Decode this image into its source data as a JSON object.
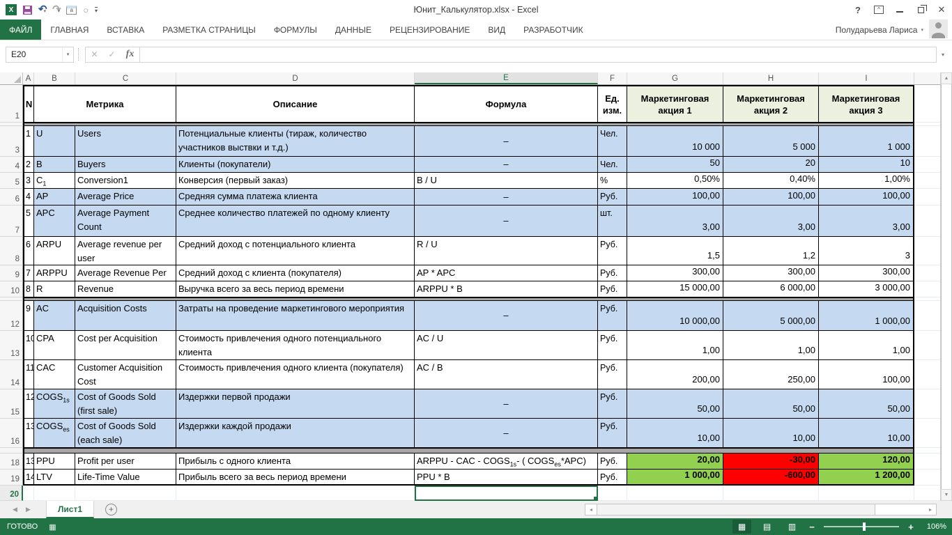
{
  "window": {
    "title": "Юнит_Калькулятор.xlsx - Excel",
    "user": "Полударьева Лариса"
  },
  "ribbon": {
    "tabs": [
      {
        "label": "ФАЙЛ",
        "active": true
      },
      {
        "label": "ГЛАВНАЯ"
      },
      {
        "label": "ВСТАВКА"
      },
      {
        "label": "РАЗМЕТКА СТРАНИЦЫ"
      },
      {
        "label": "ФОРМУЛЫ"
      },
      {
        "label": "ДАННЫЕ"
      },
      {
        "label": "РЕЦЕНЗИРОВАНИЕ"
      },
      {
        "label": "ВИД"
      },
      {
        "label": "РАЗРАБОТЧИК"
      }
    ]
  },
  "formula_bar": {
    "name_box": "E20",
    "formula": ""
  },
  "sheet": {
    "columns": [
      "A",
      "B",
      "C",
      "D",
      "E",
      "F",
      "G",
      "H",
      "I"
    ],
    "selected_column": "E",
    "selected_row": 20,
    "selected_cell": "E20",
    "tab": "Лист1",
    "header_row": {
      "n": "N",
      "metric": "Метрика",
      "desc": "Описание",
      "formula": "Формула",
      "unit": "Ед. изм.",
      "c1": "Маркетинговая акция 1",
      "c2": "Маркетинговая акция 2",
      "c3": "Маркетинговая акция 3"
    },
    "rows": [
      {
        "row": 1,
        "type": "header"
      },
      {
        "row": 2,
        "hidden": true
      },
      {
        "row": 3,
        "n": "1",
        "code": "U",
        "metric": "Users",
        "desc": "Потенциальные клиенты (тираж, количество участников выствки и т.д.)",
        "formula": "–",
        "unit": "Чел.",
        "values": [
          "10 000",
          "5 000",
          "1 000"
        ],
        "fill": "blue"
      },
      {
        "row": 4,
        "n": "2",
        "code": "B",
        "metric": "Buyers",
        "desc": "Клиенты (покупатели)",
        "formula": "–",
        "unit": "Чел.",
        "values": [
          "50",
          "20",
          "10"
        ],
        "fill": "blue"
      },
      {
        "row": 5,
        "n": "3",
        "code": "C_{1}",
        "metric": "Conversion1",
        "desc": "Конверсия (первый заказ)",
        "formula": "B / U",
        "unit": "%",
        "values": [
          "0,50%",
          "0,40%",
          "1,00%"
        ],
        "fill": "white"
      },
      {
        "row": 6,
        "n": "4",
        "code": "AP",
        "metric": "Average Price",
        "desc": "Средняя сумма платежа клиента",
        "formula": "–",
        "unit": "Руб.",
        "values": [
          "100,00",
          "100,00",
          "100,00"
        ],
        "fill": "blue"
      },
      {
        "row": 7,
        "n": "5",
        "code": "APC",
        "metric": "Average Payment Count",
        "desc": "Среднее количество платежей по одному клиенту",
        "formula": "–",
        "unit": "шт.",
        "values": [
          "3,00",
          "3,00",
          "3,00"
        ],
        "fill": "blue"
      },
      {
        "row": 8,
        "n": "6",
        "code": "ARPU",
        "metric": "Average revenue per user",
        "desc": "Средний доход с потенциального клиента",
        "formula": "R / U",
        "unit": "Руб.",
        "values": [
          "1,5",
          "1,2",
          "3"
        ],
        "fill": "white"
      },
      {
        "row": 9,
        "n": "7",
        "code": "ARPPU",
        "metric": "Average Revenue Per",
        "desc": "Средний доход с клиента (покупателя)",
        "formula": "AP * APC",
        "unit": "Руб.",
        "values": [
          "300,00",
          "300,00",
          "300,00"
        ],
        "fill": "white"
      },
      {
        "row": 10,
        "n": "8",
        "code": "R",
        "metric": "Revenue",
        "desc": "Выручка всего за весь период времени",
        "formula": "ARPPU * B",
        "unit": "Руб.",
        "values": [
          "15 000,00",
          "6 000,00",
          "3 000,00"
        ],
        "fill": "white"
      },
      {
        "row": 11,
        "hidden": true
      },
      {
        "row": 12,
        "n": "9",
        "code": "AC",
        "metric": "Acquisition Costs",
        "desc": "Затраты на проведение маркетингового мероприятия",
        "formula": "–",
        "unit": "Руб.",
        "values": [
          "10 000,00",
          "5 000,00",
          "1 000,00"
        ],
        "fill": "blue"
      },
      {
        "row": 13,
        "n": "10",
        "code": "CPA",
        "metric": "Cost per Acquisition",
        "desc": "Стоимость привлечения одного потенциального клиента",
        "formula": "AC / U",
        "unit": "Руб.",
        "values": [
          "1,00",
          "1,00",
          "1,00"
        ],
        "fill": "white"
      },
      {
        "row": 14,
        "n": "11",
        "code": "CAC",
        "metric": "Customer Acquisition Cost",
        "desc": "Стоимость привлечения одного клиента (покупателя)",
        "formula": "AC / B",
        "unit": "Руб.",
        "values": [
          "200,00",
          "250,00",
          "100,00"
        ],
        "fill": "white"
      },
      {
        "row": 15,
        "n": "12",
        "code": "COGS_{1s}",
        "metric": "Cost of Goods Sold (first sale)",
        "desc": "Издержки первой продажи",
        "formula": "–",
        "unit": "Руб.",
        "values": [
          "50,00",
          "50,00",
          "50,00"
        ],
        "fill": "blue"
      },
      {
        "row": 16,
        "n": "13",
        "code": "COGS_{es}",
        "metric": "Cost of Goods Sold (each sale)",
        "desc": "Издержки каждой продажи",
        "formula": "–",
        "unit": "Руб.",
        "values": [
          "10,00",
          "10,00",
          "10,00"
        ],
        "fill": "blue"
      },
      {
        "row": 17,
        "hidden": true
      },
      {
        "row": 18,
        "n": "13",
        "code": "PPU",
        "metric": "Profit per user",
        "desc": "Прибыль с одного клиента",
        "formula": "ARPPU - CAC - COGS_{1s}- ( COGS_{es}*APC)",
        "unit": "Руб.",
        "values": [
          "20,00",
          "-30,00",
          "120,00"
        ],
        "fill": "white",
        "value_fills": [
          "green",
          "red",
          "green"
        ],
        "values_bold": true
      },
      {
        "row": 19,
        "n": "14",
        "code": "LTV",
        "metric": "Life-Time Value",
        "desc": "Прибыль всего за весь период времени",
        "formula": "PPU * B",
        "unit": "Руб.",
        "values": [
          "1 000,00",
          "-600,00",
          "1 200,00"
        ],
        "fill": "white",
        "value_fills": [
          "green",
          "red",
          "green"
        ],
        "values_bold": true
      },
      {
        "row": 20,
        "type": "empty"
      }
    ]
  },
  "statusbar": {
    "status": "ГОТОВО",
    "zoom": "106%"
  },
  "icons": {
    "excel": "X",
    "undo": "↶",
    "redo": "↷",
    "dropdown": "▾",
    "qat_a": "a",
    "circle": "○",
    "help": "?",
    "close": "✕",
    "cancel": "✕",
    "enter": "✓",
    "fx": "fx",
    "up": "▲",
    "down": "▼",
    "nav_left": "◀",
    "nav_right": "▶",
    "scroll_left": "◂",
    "scroll_right": "▸",
    "plus": "+",
    "minus": "−",
    "grid": "▦",
    "layout": "▤",
    "pagebreak": "▥"
  },
  "colors": {
    "accent": "#217346",
    "blue_fill": "#C5D9F1",
    "header_fill": "#EBF1DE",
    "green_fill": "#92D050",
    "red_fill": "#FF0000",
    "hidden_band": "#A6A6A6"
  }
}
